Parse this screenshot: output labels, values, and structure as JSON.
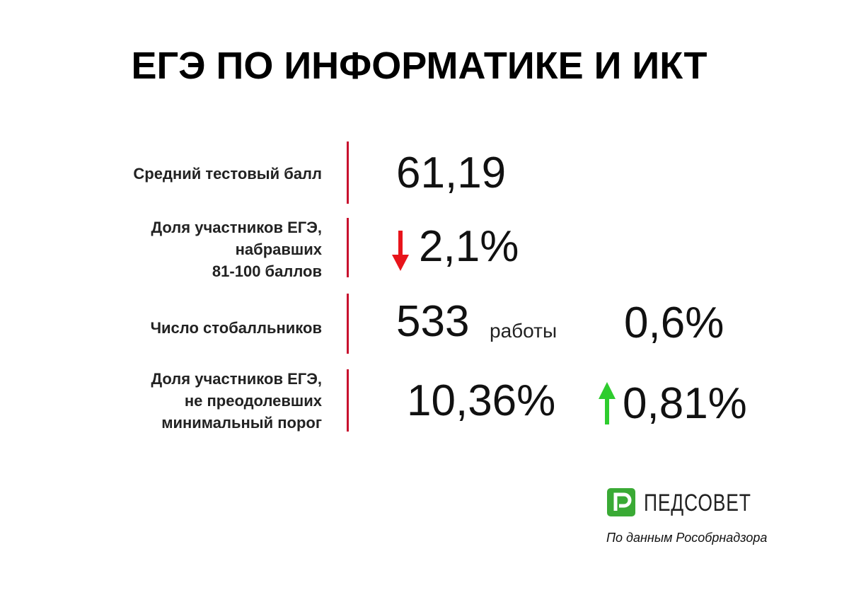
{
  "header": {
    "title": "ЕГЭ ПО ИНФОРМАТИКЕ И ИКТ"
  },
  "rows": [
    {
      "label": [
        "Средний тестовый балл"
      ],
      "value": "61,19"
    },
    {
      "label": [
        "Доля участников ЕГЭ,",
        "набравших",
        "81-100 баллов"
      ],
      "value": "2,1%"
    },
    {
      "label": [
        "Число стобалльников"
      ],
      "value": "533",
      "unit": "работы",
      "share": "0,6%"
    },
    {
      "label": [
        "Доля участников ЕГЭ,",
        "не преодолевших",
        "минимальный порог"
      ],
      "value": "10,36%",
      "change": "0,81%"
    }
  ],
  "footer": {
    "logo": "ПЕДСОВЕТ",
    "source": "По данным Рособрнадзора"
  }
}
